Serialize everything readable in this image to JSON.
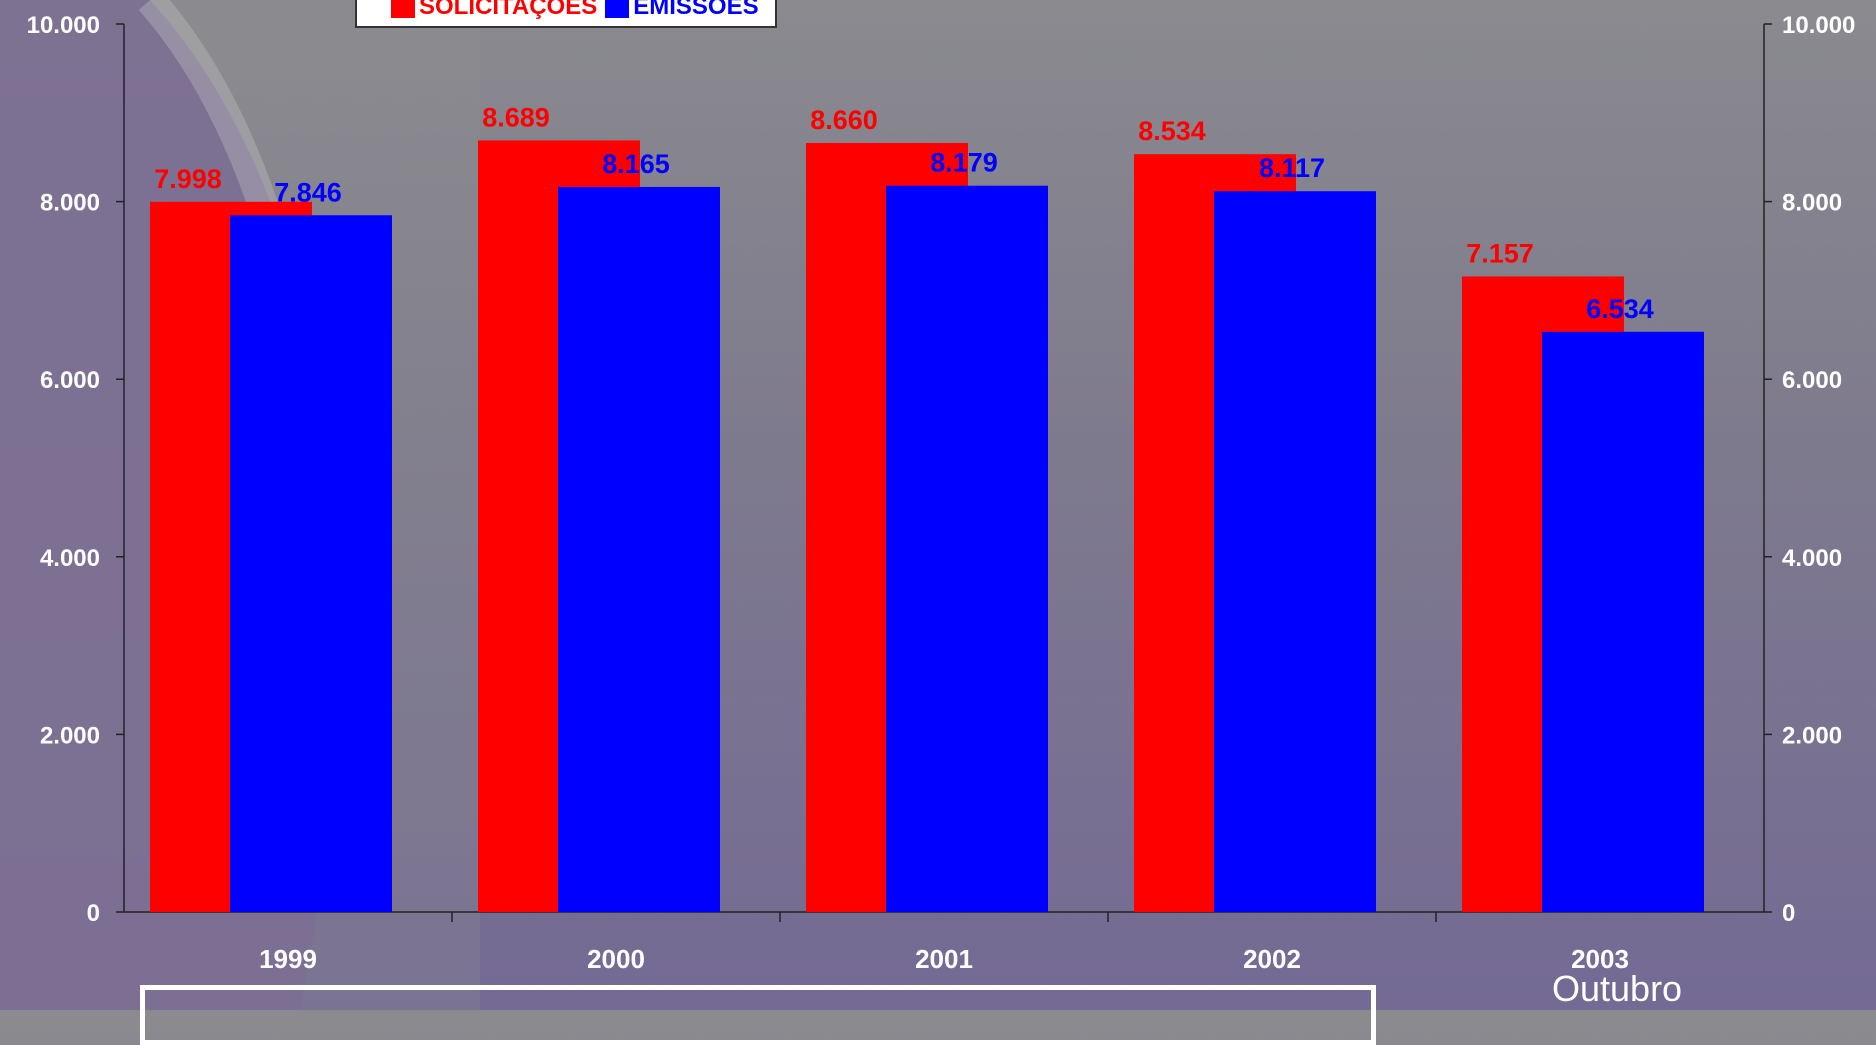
{
  "chart_data": {
    "type": "bar",
    "categories": [
      "1999",
      "2000",
      "2001",
      "2002",
      "2003"
    ],
    "series": [
      {
        "name": "SOLICITAÇÕES",
        "color": "#ff0000",
        "values": [
          7998,
          8689,
          8660,
          8534,
          7157
        ],
        "labels": [
          "7.998",
          "8.689",
          "8.660",
          "8.534",
          "7.157"
        ]
      },
      {
        "name": "EMISSÕES",
        "color": "#0000ff",
        "values": [
          7846,
          8165,
          8179,
          8117,
          6534
        ],
        "labels": [
          "7.846",
          "8.165",
          "8.179",
          "8.117",
          "6.534"
        ]
      }
    ],
    "ylim": [
      0,
      10000
    ],
    "y_ticks": [
      {
        "value": 0,
        "label": "0"
      },
      {
        "value": 2000,
        "label": "2.000"
      },
      {
        "value": 4000,
        "label": "4.000"
      },
      {
        "value": 6000,
        "label": "6.000"
      },
      {
        "value": 8000,
        "label": "8.000"
      },
      {
        "value": 10000,
        "label": "10.000"
      }
    ],
    "secondary_y_axis": true,
    "grid": false,
    "legend_position": "top-left"
  },
  "legend": {
    "items": [
      {
        "label": "SOLICITAÇÕES",
        "color": "#ff0000"
      },
      {
        "label": "EMISSÕES",
        "color": "#0000ff"
      }
    ]
  },
  "annotation": {
    "text": "Outubro"
  }
}
